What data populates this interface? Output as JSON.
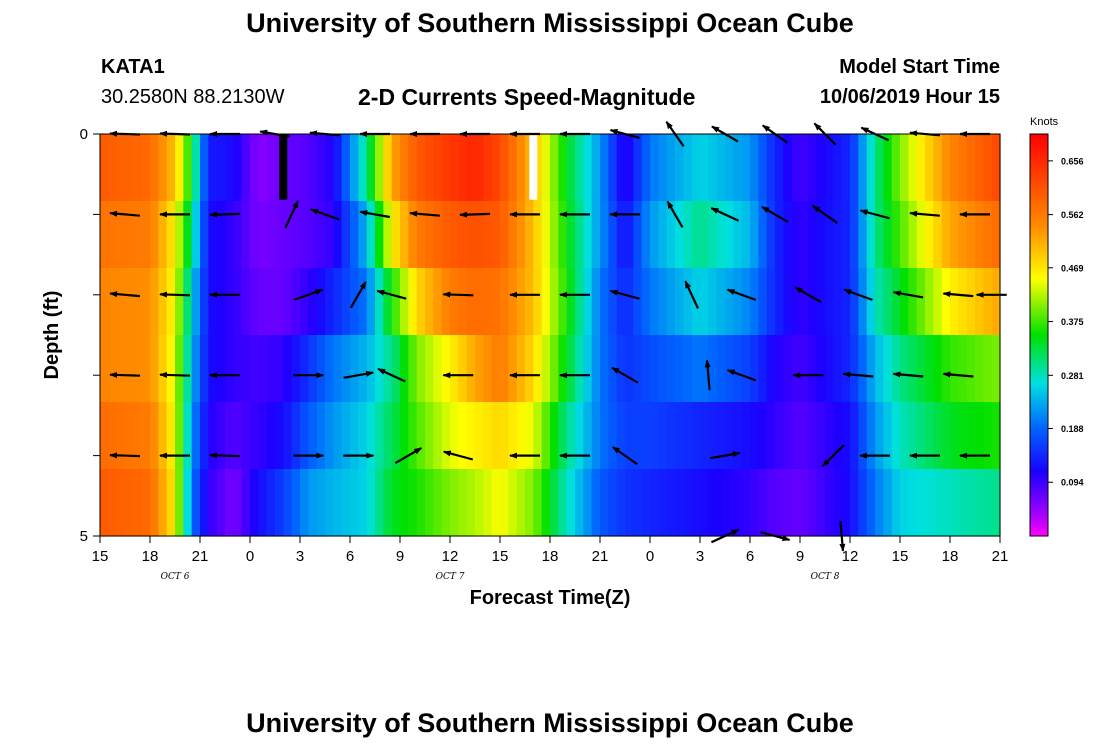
{
  "header": {
    "title_top": "University of Southern Mississippi Ocean Cube",
    "title_bottom": "University of Southern Mississippi Ocean Cube",
    "station": "KATA1",
    "coordinates": "30.2580N 88.2130W",
    "subtitle": "2-D Currents Speed-Magnitude",
    "model_start_label": "Model Start Time",
    "model_start_value": "10/06/2019 Hour 15"
  },
  "chart_data": {
    "type": "heatmap",
    "title": "2-D Currents Speed-Magnitude",
    "xlabel": "Forecast Time(Z)",
    "ylabel": "Depth (ft)",
    "x_tick_labels": [
      "15",
      "18",
      "21",
      "0",
      "3",
      "6",
      "9",
      "12",
      "15",
      "18",
      "21",
      "0",
      "3",
      "6",
      "9",
      "12",
      "15",
      "18",
      "21"
    ],
    "x_range_hours": [
      0,
      54
    ],
    "date_labels": [
      {
        "text": "OCT 6",
        "hour": 4.5
      },
      {
        "text": "OCT 7",
        "hour": 21
      },
      {
        "text": "OCT 8",
        "hour": 43.5
      }
    ],
    "y_range": [
      0,
      5
    ],
    "y_tick_labels": [
      "0",
      "5"
    ],
    "depth_levels": [
      0,
      1,
      2,
      3,
      4,
      5
    ],
    "colorbar": {
      "unit": "Knots",
      "range": [
        0,
        0.703
      ],
      "ticks": [
        0.656,
        0.562,
        0.469,
        0.375,
        0.281,
        0.188,
        0.094
      ],
      "tick_labels": [
        "0.656",
        "0.562",
        "0.469",
        "0.375",
        "0.281",
        "0.188",
        "0.094"
      ]
    },
    "speed_profile_hours": [
      0,
      3,
      4.5,
      5.5,
      6.5,
      8,
      9.5,
      11,
      12.5,
      14,
      16,
      17.5,
      19,
      21,
      22.5,
      24,
      26,
      28,
      30,
      31.5,
      33,
      36,
      39,
      40.5,
      42,
      45,
      46.5,
      48,
      51,
      54
    ],
    "speed_profile_by_depth": [
      [
        0.6,
        0.58,
        0.5,
        0.34,
        0.13,
        0.12,
        0.05,
        0.07,
        0.08,
        0.11,
        0.3,
        0.52,
        0.6,
        0.64,
        0.66,
        0.62,
        0.5,
        0.34,
        0.22,
        0.1,
        0.2,
        0.26,
        0.22,
        0.14,
        0.09,
        0.14,
        0.3,
        0.4,
        0.55,
        0.62
      ],
      [
        0.57,
        0.56,
        0.46,
        0.3,
        0.12,
        0.1,
        0.06,
        0.07,
        0.08,
        0.1,
        0.24,
        0.46,
        0.56,
        0.6,
        0.61,
        0.6,
        0.5,
        0.35,
        0.22,
        0.12,
        0.22,
        0.3,
        0.24,
        0.14,
        0.1,
        0.14,
        0.3,
        0.38,
        0.52,
        0.58
      ],
      [
        0.55,
        0.54,
        0.45,
        0.26,
        0.12,
        0.1,
        0.07,
        0.07,
        0.1,
        0.14,
        0.2,
        0.36,
        0.48,
        0.56,
        0.58,
        0.57,
        0.5,
        0.36,
        0.2,
        0.14,
        0.2,
        0.26,
        0.21,
        0.14,
        0.1,
        0.14,
        0.28,
        0.34,
        0.46,
        0.52
      ],
      [
        0.55,
        0.54,
        0.44,
        0.24,
        0.12,
        0.1,
        0.09,
        0.1,
        0.15,
        0.2,
        0.24,
        0.3,
        0.4,
        0.46,
        0.52,
        0.56,
        0.48,
        0.34,
        0.2,
        0.15,
        0.17,
        0.2,
        0.16,
        0.11,
        0.09,
        0.14,
        0.24,
        0.3,
        0.37,
        0.4
      ],
      [
        0.58,
        0.56,
        0.45,
        0.22,
        0.11,
        0.08,
        0.1,
        0.12,
        0.18,
        0.22,
        0.26,
        0.32,
        0.38,
        0.44,
        0.46,
        0.48,
        0.44,
        0.3,
        0.2,
        0.16,
        0.16,
        0.14,
        0.12,
        0.1,
        0.08,
        0.12,
        0.22,
        0.28,
        0.34,
        0.36
      ],
      [
        0.6,
        0.58,
        0.46,
        0.2,
        0.1,
        0.06,
        0.12,
        0.16,
        0.22,
        0.24,
        0.26,
        0.34,
        0.36,
        0.4,
        0.42,
        0.45,
        0.4,
        0.28,
        0.18,
        0.15,
        0.14,
        0.12,
        0.1,
        0.08,
        0.07,
        0.12,
        0.2,
        0.26,
        0.28,
        0.3
      ]
    ],
    "current_vectors": [
      {
        "depth": 0,
        "hour": 1.5,
        "angle_deg": 178
      },
      {
        "depth": 0,
        "hour": 4.5,
        "angle_deg": 178
      },
      {
        "depth": 0,
        "hour": 7.5,
        "angle_deg": 180
      },
      {
        "depth": 0,
        "hour": 10.5,
        "angle_deg": 170
      },
      {
        "depth": 0,
        "hour": 13.5,
        "angle_deg": 175
      },
      {
        "depth": 0,
        "hour": 16.5,
        "angle_deg": 180
      },
      {
        "depth": 0,
        "hour": 19.5,
        "angle_deg": 180
      },
      {
        "depth": 0,
        "hour": 22.5,
        "angle_deg": 180
      },
      {
        "depth": 0,
        "hour": 25.5,
        "angle_deg": 180
      },
      {
        "depth": 0,
        "hour": 28.5,
        "angle_deg": 180
      },
      {
        "depth": 0,
        "hour": 31.5,
        "angle_deg": 165
      },
      {
        "depth": 0,
        "hour": 34.5,
        "angle_deg": 125
      },
      {
        "depth": 0,
        "hour": 37.5,
        "angle_deg": 150
      },
      {
        "depth": 0,
        "hour": 40.5,
        "angle_deg": 145
      },
      {
        "depth": 0,
        "hour": 43.5,
        "angle_deg": 135
      },
      {
        "depth": 0,
        "hour": 46.5,
        "angle_deg": 155
      },
      {
        "depth": 0,
        "hour": 49.5,
        "angle_deg": 175
      },
      {
        "depth": 0,
        "hour": 52.5,
        "angle_deg": 180
      },
      {
        "depth": 1,
        "hour": 1.5,
        "angle_deg": 175
      },
      {
        "depth": 1,
        "hour": 4.5,
        "angle_deg": 180
      },
      {
        "depth": 1,
        "hour": 7.5,
        "angle_deg": 182
      },
      {
        "depth": 1,
        "hour": 11.5,
        "angle_deg": 65
      },
      {
        "depth": 1,
        "hour": 13.5,
        "angle_deg": 160
      },
      {
        "depth": 1,
        "hour": 16.5,
        "angle_deg": 170
      },
      {
        "depth": 1,
        "hour": 19.5,
        "angle_deg": 175
      },
      {
        "depth": 1,
        "hour": 22.5,
        "angle_deg": 182
      },
      {
        "depth": 1,
        "hour": 25.5,
        "angle_deg": 180
      },
      {
        "depth": 1,
        "hour": 28.5,
        "angle_deg": 180
      },
      {
        "depth": 1,
        "hour": 31.5,
        "angle_deg": 180
      },
      {
        "depth": 1,
        "hour": 34.5,
        "angle_deg": 120
      },
      {
        "depth": 1,
        "hour": 37.5,
        "angle_deg": 155
      },
      {
        "depth": 1,
        "hour": 40.5,
        "angle_deg": 150
      },
      {
        "depth": 1,
        "hour": 43.5,
        "angle_deg": 145
      },
      {
        "depth": 1,
        "hour": 46.5,
        "angle_deg": 165
      },
      {
        "depth": 1,
        "hour": 49.5,
        "angle_deg": 175
      },
      {
        "depth": 1,
        "hour": 52.5,
        "angle_deg": 180
      },
      {
        "depth": 2,
        "hour": 1.5,
        "angle_deg": 175
      },
      {
        "depth": 2,
        "hour": 4.5,
        "angle_deg": 178
      },
      {
        "depth": 2,
        "hour": 7.5,
        "angle_deg": 180
      },
      {
        "depth": 2,
        "hour": 12.5,
        "angle_deg": 20
      },
      {
        "depth": 2,
        "hour": 15.5,
        "angle_deg": 60
      },
      {
        "depth": 2,
        "hour": 17.5,
        "angle_deg": 165
      },
      {
        "depth": 2,
        "hour": 21.5,
        "angle_deg": 178
      },
      {
        "depth": 2,
        "hour": 25.5,
        "angle_deg": 180
      },
      {
        "depth": 2,
        "hour": 28.5,
        "angle_deg": 180
      },
      {
        "depth": 2,
        "hour": 31.5,
        "angle_deg": 165
      },
      {
        "depth": 2,
        "hour": 35.5,
        "angle_deg": 115
      },
      {
        "depth": 2,
        "hour": 38.5,
        "angle_deg": 160
      },
      {
        "depth": 2,
        "hour": 42.5,
        "angle_deg": 150
      },
      {
        "depth": 2,
        "hour": 45.5,
        "angle_deg": 160
      },
      {
        "depth": 2,
        "hour": 48.5,
        "angle_deg": 170
      },
      {
        "depth": 2,
        "hour": 51.5,
        "angle_deg": 175
      },
      {
        "depth": 2,
        "hour": 53.5,
        "angle_deg": 180
      },
      {
        "depth": 3,
        "hour": 1.5,
        "angle_deg": 178
      },
      {
        "depth": 3,
        "hour": 4.5,
        "angle_deg": 178
      },
      {
        "depth": 3,
        "hour": 7.5,
        "angle_deg": 180
      },
      {
        "depth": 3,
        "hour": 12.5,
        "angle_deg": 0
      },
      {
        "depth": 3,
        "hour": 15.5,
        "angle_deg": 10
      },
      {
        "depth": 3,
        "hour": 17.5,
        "angle_deg": 155
      },
      {
        "depth": 3,
        "hour": 21.5,
        "angle_deg": 180
      },
      {
        "depth": 3,
        "hour": 25.5,
        "angle_deg": 180
      },
      {
        "depth": 3,
        "hour": 28.5,
        "angle_deg": 180
      },
      {
        "depth": 3,
        "hour": 31.5,
        "angle_deg": 150
      },
      {
        "depth": 3,
        "hour": 36.5,
        "angle_deg": 95
      },
      {
        "depth": 3,
        "hour": 38.5,
        "angle_deg": 160
      },
      {
        "depth": 3,
        "hour": 42.5,
        "angle_deg": 180
      },
      {
        "depth": 3,
        "hour": 45.5,
        "angle_deg": 175
      },
      {
        "depth": 3,
        "hour": 48.5,
        "angle_deg": 175
      },
      {
        "depth": 3,
        "hour": 51.5,
        "angle_deg": 175
      },
      {
        "depth": 4,
        "hour": 1.5,
        "angle_deg": 178
      },
      {
        "depth": 4,
        "hour": 4.5,
        "angle_deg": 180
      },
      {
        "depth": 4,
        "hour": 7.5,
        "angle_deg": 178
      },
      {
        "depth": 4,
        "hour": 12.5,
        "angle_deg": 0
      },
      {
        "depth": 4,
        "hour": 15.5,
        "angle_deg": 0
      },
      {
        "depth": 4,
        "hour": 18.5,
        "angle_deg": 30
      },
      {
        "depth": 4,
        "hour": 21.5,
        "angle_deg": 165
      },
      {
        "depth": 4,
        "hour": 25.5,
        "angle_deg": 180
      },
      {
        "depth": 4,
        "hour": 28.5,
        "angle_deg": 180
      },
      {
        "depth": 4,
        "hour": 31.5,
        "angle_deg": 145
      },
      {
        "depth": 4,
        "hour": 37.5,
        "angle_deg": 10
      },
      {
        "depth": 4,
        "hour": 44,
        "angle_deg": 225
      },
      {
        "depth": 4,
        "hour": 46.5,
        "angle_deg": 180
      },
      {
        "depth": 4,
        "hour": 49.5,
        "angle_deg": 180
      },
      {
        "depth": 4,
        "hour": 52.5,
        "angle_deg": 180
      },
      {
        "depth": 5,
        "hour": 37.5,
        "angle_deg": 25
      },
      {
        "depth": 5,
        "hour": 40.5,
        "angle_deg": 345
      },
      {
        "depth": 5,
        "hour": 44.5,
        "angle_deg": 275
      }
    ],
    "data_gap_marks": [
      {
        "hour": 11,
        "color": "#000000"
      },
      {
        "hour": 26,
        "color": "#ffffff"
      }
    ]
  }
}
